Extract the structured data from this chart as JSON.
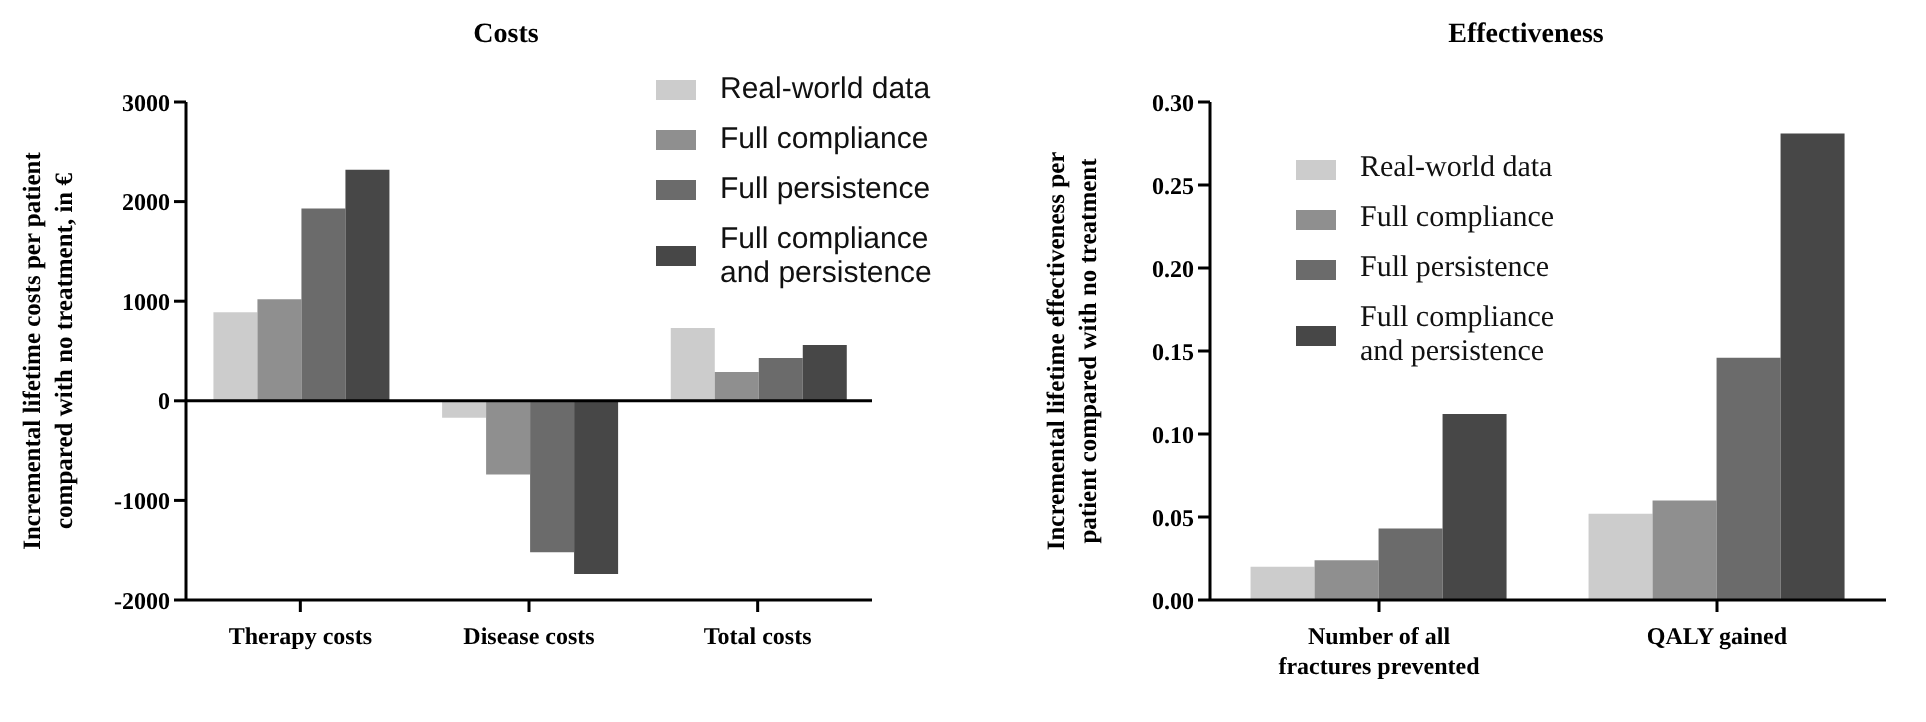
{
  "chart_data": [
    {
      "type": "bar",
      "title": "Costs",
      "ylabel": "Incremental lifetime costs per patient compared with no treatment, in €",
      "categories": [
        "Therapy costs",
        "Disease costs",
        "Total costs"
      ],
      "series": [
        {
          "name": "Real-world data",
          "color": "#cccccc",
          "values": [
            890,
            -170,
            730
          ]
        },
        {
          "name": "Full compliance",
          "color": "#8f8f8f",
          "values": [
            1020,
            -740,
            290
          ]
        },
        {
          "name": "Full persistence",
          "color": "#6b6b6b",
          "values": [
            1930,
            -1520,
            430
          ]
        },
        {
          "name": "Full compliance and persistence",
          "color": "#474747",
          "values": [
            2320,
            -1740,
            560
          ]
        }
      ],
      "ylim": [
        -2000,
        3000
      ],
      "yticks": [
        -2000,
        -1000,
        0,
        1000,
        2000,
        3000
      ],
      "ref_lines": [
        {
          "axis": "y",
          "value": 0,
          "color": "#000000"
        }
      ],
      "grid": false,
      "legend": "top right"
    },
    {
      "type": "bar",
      "title": "Effectiveness",
      "ylabel": "Incremental lifetime effectiveness per patient compared with no treatment",
      "categories": [
        "Number of all fractures prevented",
        "QALY gained"
      ],
      "series": [
        {
          "name": "Real-world data",
          "color": "#cccccc",
          "values": [
            0.02,
            0.052
          ]
        },
        {
          "name": "Full compliance",
          "color": "#8f8f8f",
          "values": [
            0.024,
            0.06
          ]
        },
        {
          "name": "Full persistence",
          "color": "#6b6b6b",
          "values": [
            0.043,
            0.146
          ]
        },
        {
          "name": "Full compliance and persistence",
          "color": "#474747",
          "values": [
            0.112,
            0.281
          ]
        }
      ],
      "ylim": [
        0,
        0.3
      ],
      "yticks": [
        {
          "value": 0,
          "label": "0.00"
        },
        {
          "value": 0.05,
          "label": "0.05"
        },
        {
          "value": 0.1,
          "label": "0.10"
        },
        {
          "value": 0.15,
          "label": "0.15"
        },
        {
          "value": 0.2,
          "label": "0.20"
        },
        {
          "value": 0.25,
          "label": "0.25"
        },
        {
          "value": 0.3,
          "label": "0.30"
        }
      ],
      "grid": false,
      "legend": "top left"
    }
  ]
}
